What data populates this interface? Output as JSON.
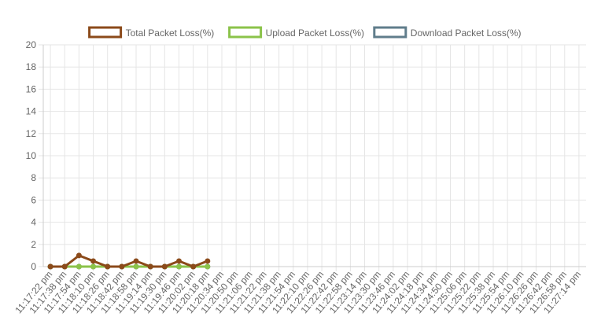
{
  "chart_data": {
    "type": "line",
    "categories": [
      "11:17:22 pm",
      "11:17:38 pm",
      "11:17:54 pm",
      "11:18:10 pm",
      "11:18:26 pm",
      "11:18:42 pm",
      "11:18:58 pm",
      "11:19:14 pm",
      "11:19:30 pm",
      "11:19:46 pm",
      "11:20:02 pm",
      "11:20:18 pm",
      "11:20:34 pm",
      "11:20:50 pm",
      "11:21:06 pm",
      "11:21:22 pm",
      "11:21:38 pm",
      "11:21:54 pm",
      "11:22:10 pm",
      "11:22:26 pm",
      "11:22:42 pm",
      "11:22:58 pm",
      "11:23:14 pm",
      "11:23:30 pm",
      "11:23:46 pm",
      "11:24:02 pm",
      "11:24:18 pm",
      "11:24:34 pm",
      "11:24:50 pm",
      "11:25:06 pm",
      "11:25:22 pm",
      "11:25:38 pm",
      "11:25:54 pm",
      "11:26:10 pm",
      "11:26:26 pm",
      "11:26:42 pm",
      "11:26:58 pm",
      "11:27:14 pm"
    ],
    "series": [
      {
        "name": "Total Packet Loss(%)",
        "color": "#8b4a1a",
        "values": [
          0,
          0,
          1,
          0.5,
          0,
          0,
          0.5,
          0,
          0,
          0.5,
          0,
          0.5,
          null,
          null,
          null,
          null,
          null,
          null,
          null,
          null,
          null,
          null,
          null,
          null,
          null,
          null,
          null,
          null,
          null,
          null,
          null,
          null,
          null,
          null,
          null,
          null,
          null,
          null
        ]
      },
      {
        "name": "Upload Packet Loss(%)",
        "color": "#8bc34a",
        "values": [
          0,
          0,
          0,
          0,
          0,
          0,
          0,
          0,
          0,
          0,
          0,
          0,
          null,
          null,
          null,
          null,
          null,
          null,
          null,
          null,
          null,
          null,
          null,
          null,
          null,
          null,
          null,
          null,
          null,
          null,
          null,
          null,
          null,
          null,
          null,
          null,
          null,
          null
        ]
      },
      {
        "name": "Download Packet Loss(%)",
        "color": "#607d8b",
        "values": [
          0,
          0,
          0,
          0,
          0,
          0,
          0,
          0,
          0,
          0,
          0,
          0,
          null,
          null,
          null,
          null,
          null,
          null,
          null,
          null,
          null,
          null,
          null,
          null,
          null,
          null,
          null,
          null,
          null,
          null,
          null,
          null,
          null,
          null,
          null,
          null,
          null,
          null
        ]
      }
    ],
    "ylim": [
      0,
      20
    ],
    "yticks": [
      0,
      2,
      4,
      6,
      8,
      10,
      12,
      14,
      16,
      18,
      20
    ],
    "grid": true
  }
}
